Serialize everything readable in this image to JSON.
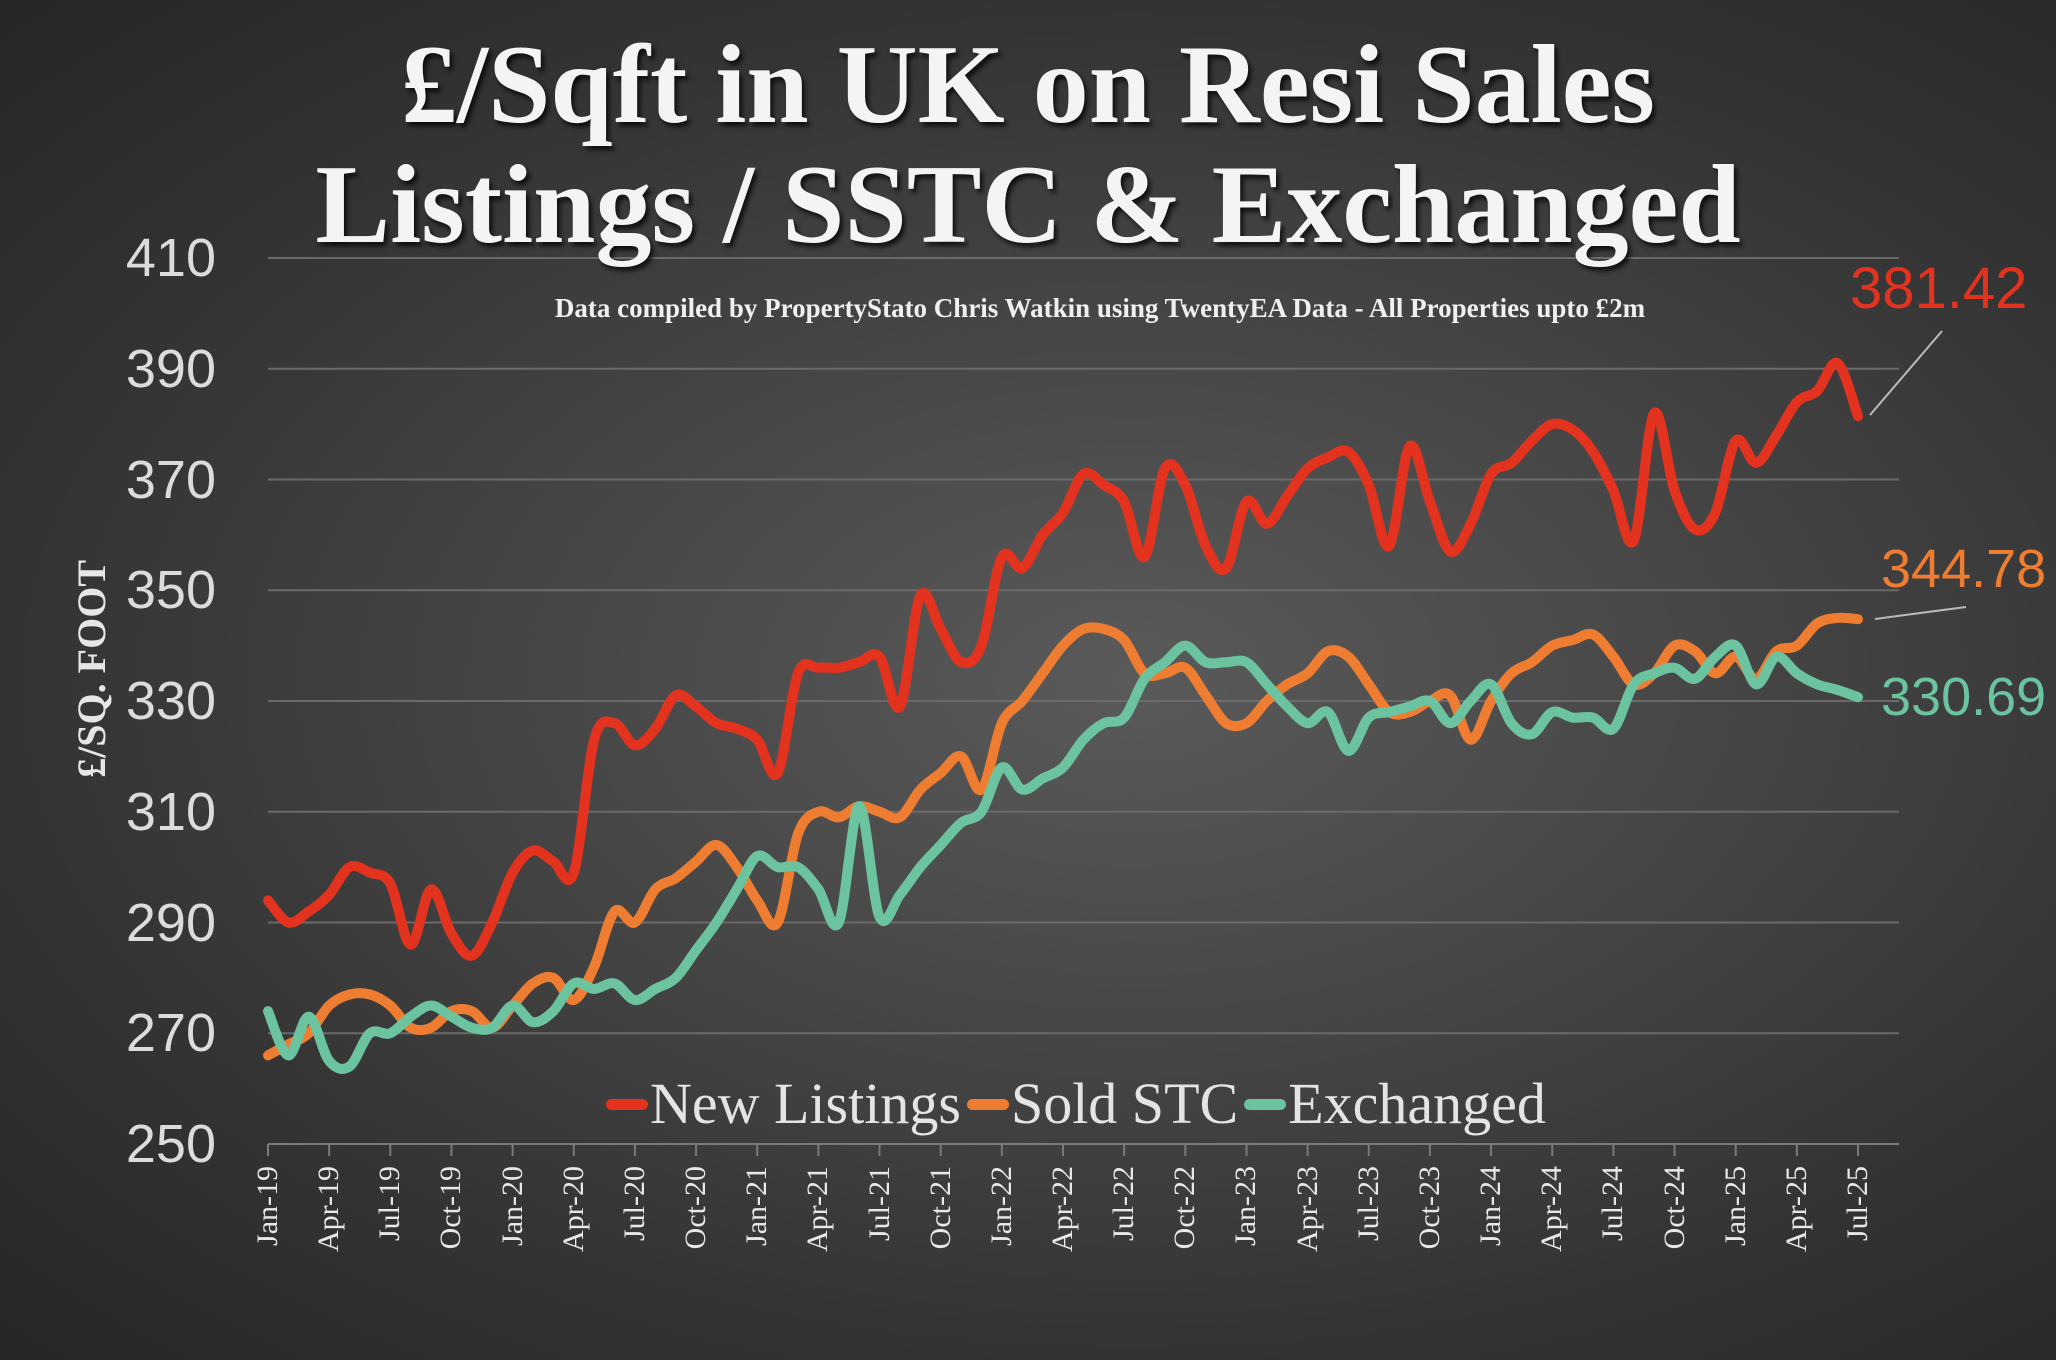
{
  "chart_data": {
    "type": "line",
    "title": [
      "£/Sqft in UK on Resi Sales",
      "Listings / SSTC & Exchanged"
    ],
    "subtitle": "Data compiled by PropertyStato Chris Watkin using TwentyEA Data - All Properties upto £2m",
    "ylabel": "£/SQ. FOOT",
    "xlabel": "",
    "ylim": [
      250,
      410
    ],
    "yticks": [
      "250",
      "270",
      "290",
      "310",
      "330",
      "350",
      "370",
      "390",
      "410"
    ],
    "x_start": "Jan-19",
    "x_end": "Jul-25",
    "xtick_labels": [
      "Jan-19",
      "Apr-19",
      "Jul-19",
      "Oct-19",
      "Jan-20",
      "Apr-20",
      "Jul-20",
      "Oct-20",
      "Jan-21",
      "Apr-21",
      "Jul-21",
      "Oct-21",
      "Jan-22",
      "Apr-22",
      "Jul-22",
      "Oct-22",
      "Jan-23",
      "Apr-23",
      "Jul-23",
      "Oct-23",
      "Jan-24",
      "Apr-24",
      "Jul-24",
      "Oct-24",
      "Jan-25",
      "Apr-25",
      "Jul-25"
    ],
    "grid": true,
    "legend_position": "bottom-center",
    "series": [
      {
        "name": "New Listings",
        "color": "#e3331f",
        "end_label": "381.42",
        "values": [
          294,
          290,
          292,
          295,
          300,
          299,
          297,
          286,
          296,
          288,
          284,
          290,
          299,
          303,
          301,
          299,
          323,
          326,
          322,
          325,
          331,
          329,
          326,
          325,
          323,
          317,
          335,
          336,
          336,
          337,
          338,
          329,
          349,
          343,
          337,
          340,
          356,
          354,
          360,
          364,
          371,
          369,
          366,
          356,
          372,
          369,
          358,
          354,
          366,
          362,
          367,
          372,
          374,
          375,
          369,
          358,
          376,
          366,
          357,
          362,
          371,
          373,
          377,
          380,
          379,
          375,
          368,
          359,
          382,
          368,
          361,
          364,
          377,
          373,
          378,
          384,
          386,
          391,
          381.42
        ]
      },
      {
        "name": "Sold STC",
        "color": "#ef7d31",
        "end_label": "344.78",
        "values": [
          266,
          268,
          270,
          275,
          277,
          277,
          275,
          271,
          271,
          274,
          274,
          271,
          275,
          279,
          280,
          276,
          282,
          292,
          290,
          296,
          298,
          301,
          304,
          300,
          294,
          290,
          306,
          310,
          309,
          311,
          310,
          309,
          314,
          317,
          320,
          314,
          326,
          330,
          335,
          340,
          343,
          343,
          341,
          335,
          335,
          336,
          331,
          326,
          326,
          330,
          333,
          335,
          339,
          338,
          333,
          328,
          328,
          330,
          331,
          323,
          330,
          335,
          337,
          340,
          341,
          342,
          338,
          333,
          335,
          340,
          339,
          335,
          338,
          334,
          339,
          340,
          344,
          345,
          344.78
        ]
      },
      {
        "name": "Exchanged",
        "color": "#6cc3a0",
        "end_label": "330.69",
        "values": [
          274,
          266,
          273,
          265,
          264,
          270,
          270,
          273,
          275,
          273,
          271,
          271,
          275,
          272,
          274,
          279,
          278,
          279,
          276,
          278,
          280,
          285,
          290,
          296,
          302,
          300,
          300,
          296,
          290,
          311,
          291,
          295,
          300,
          304,
          308,
          310,
          318,
          314,
          316,
          318,
          323,
          326,
          327,
          334,
          337,
          340,
          337,
          337,
          337,
          333,
          329,
          326,
          328,
          321,
          327,
          328,
          329,
          330,
          326,
          330,
          333,
          326,
          324,
          328,
          327,
          327,
          325,
          333,
          335,
          336,
          334,
          338,
          340,
          333,
          338,
          335,
          333,
          332,
          330.69
        ]
      }
    ]
  }
}
